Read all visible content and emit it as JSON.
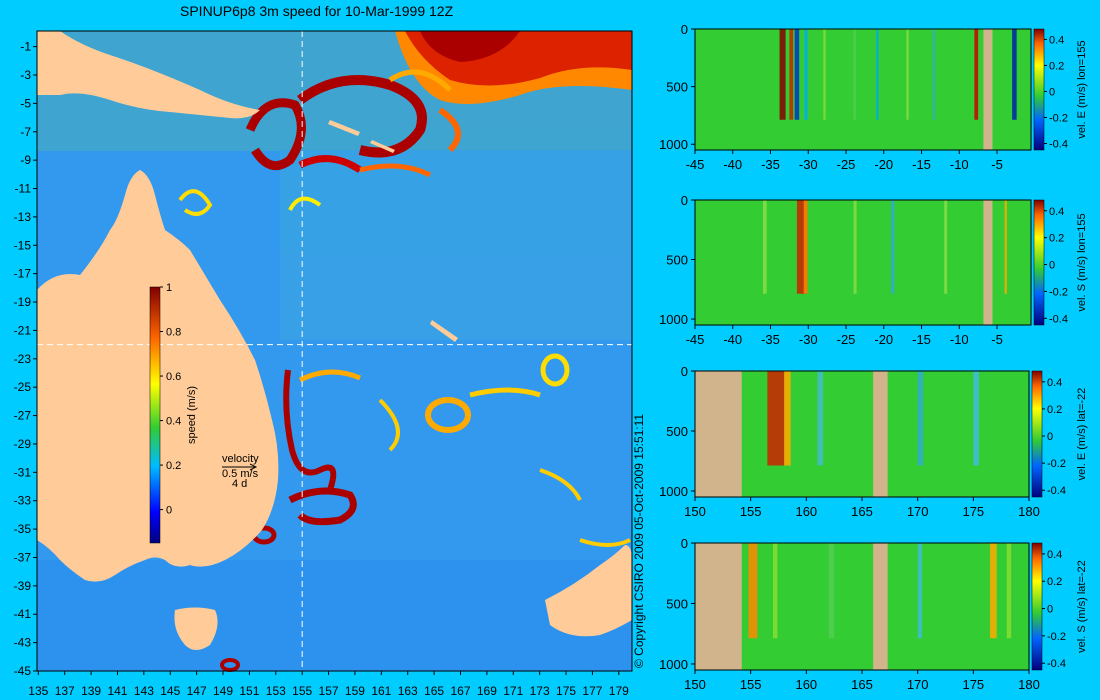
{
  "title": "SPINUP6p8 3m speed for 10-Mar-1999 12Z",
  "copyright": "© Copyright CSIRO 2009   05-Oct-2009 15:51:11",
  "colors": {
    "background": "#00ccff",
    "land": "#ffcc99",
    "section_land": "#d2b48c",
    "ocean_base": "#3399ee",
    "section_base": "#33cc33",
    "jet": "#aa0000",
    "guide_line": "#ffffff"
  },
  "velocity_legend": {
    "label": "velocity",
    "speed": "0.5 m/s",
    "time": "4 d"
  },
  "chart_data": [
    {
      "type": "heatmap",
      "name": "map",
      "x_ticks": [
        "135",
        "137",
        "139",
        "141",
        "143",
        "145",
        "147",
        "149",
        "151",
        "153",
        "155",
        "157",
        "159",
        "161",
        "163",
        "165",
        "167",
        "169",
        "171",
        "173",
        "175",
        "177",
        "179"
      ],
      "y_ticks": [
        "-1",
        "-3",
        "-5",
        "-7",
        "-9",
        "-11",
        "-13",
        "-15",
        "-17",
        "-19",
        "-21",
        "-23",
        "-25",
        "-27",
        "-29",
        "-31",
        "-33",
        "-35",
        "-37",
        "-39",
        "-41",
        "-43",
        "-45"
      ],
      "xlim": [
        134.9,
        180.0
      ],
      "ylim": [
        -45,
        0.1
      ],
      "guide_lon": 155,
      "guide_lat": -22,
      "colorbar": {
        "label": "speed (m/s)",
        "ticks": [
          "0",
          "0.2",
          "0.4",
          "0.6",
          "0.8",
          "1"
        ],
        "range": [
          -0.15,
          1
        ]
      }
    },
    {
      "type": "heatmap",
      "name": "section-1",
      "x_ticks": [
        "-45",
        "-40",
        "-35",
        "-30",
        "-25",
        "-20",
        "-15",
        "-10",
        "-5"
      ],
      "xlim": [
        -45,
        -0.5
      ],
      "y_ticks": [
        "0",
        "500",
        "1000"
      ],
      "ylim": [
        0,
        1050
      ],
      "colorbar": {
        "label": "vel. E (m/s) lon=155",
        "ticks": [
          "0.4",
          "0.2",
          "0",
          "-0.2",
          "-0.4"
        ],
        "range": [
          -0.45,
          0.48
        ]
      },
      "land_x": [
        [
          -6.8,
          -5.6
        ]
      ]
    },
    {
      "type": "heatmap",
      "name": "section-2",
      "x_ticks": [
        "-45",
        "-40",
        "-35",
        "-30",
        "-25",
        "-20",
        "-15",
        "-10",
        "-5"
      ],
      "xlim": [
        -45,
        -0.5
      ],
      "y_ticks": [
        "0",
        "500",
        "1000"
      ],
      "ylim": [
        0,
        1050
      ],
      "colorbar": {
        "label": "vel. S (m/s) lon=155",
        "ticks": [
          "0.4",
          "0.2",
          "0",
          "-0.2",
          "-0.4"
        ],
        "range": [
          -0.45,
          0.48
        ]
      },
      "land_x": [
        [
          -6.8,
          -5.6
        ]
      ]
    },
    {
      "type": "heatmap",
      "name": "section-3",
      "x_ticks": [
        "150",
        "155",
        "160",
        "165",
        "170",
        "175",
        "180"
      ],
      "xlim": [
        150,
        180
      ],
      "y_ticks": [
        "0",
        "500",
        "1000"
      ],
      "ylim": [
        0,
        1050
      ],
      "colorbar": {
        "label": "vel. E (m/s) lat=-22",
        "ticks": [
          "0.4",
          "0.2",
          "0",
          "-0.2",
          "-0.4"
        ],
        "range": [
          -0.45,
          0.48
        ]
      },
      "land_x": [
        [
          150,
          154.2
        ],
        [
          166,
          167.3
        ]
      ]
    },
    {
      "type": "heatmap",
      "name": "section-4",
      "x_ticks": [
        "150",
        "155",
        "160",
        "165",
        "170",
        "175",
        "180"
      ],
      "xlim": [
        150,
        180
      ],
      "y_ticks": [
        "0",
        "500",
        "1000"
      ],
      "ylim": [
        0,
        1050
      ],
      "colorbar": {
        "label": "vel. S (m/s) lat=-22",
        "ticks": [
          "0.4",
          "0.2",
          "0",
          "-0.2",
          "-0.4"
        ],
        "range": [
          -0.45,
          0.48
        ]
      },
      "land_x": [
        [
          150,
          154.2
        ],
        [
          166,
          167.3
        ]
      ]
    }
  ]
}
